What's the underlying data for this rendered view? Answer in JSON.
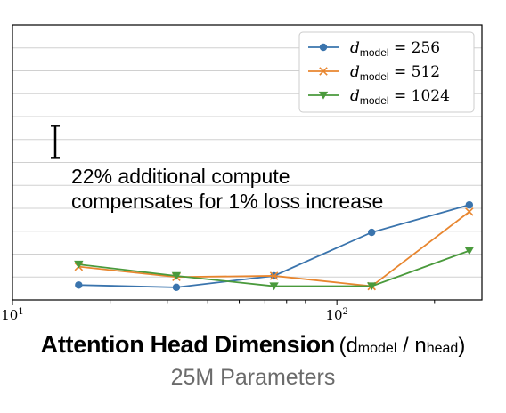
{
  "chart_data": {
    "type": "line",
    "x_scale": "log",
    "xlim": [
      10,
      280
    ],
    "ylim": [
      0,
      12
    ],
    "grid": "horizontal",
    "x_tick_labels": [
      {
        "base": "10",
        "exp": "1",
        "value": 10
      },
      {
        "base": "10",
        "exp": "2",
        "value": 100
      }
    ],
    "series": [
      {
        "name": "d_model = 256",
        "label_sym": "d",
        "label_sub": "model",
        "label_eq": "= 256",
        "color": "#3a74ad",
        "marker": "circle",
        "x": [
          16,
          32,
          64,
          128,
          256
        ],
        "y": [
          0.65,
          0.55,
          1.05,
          2.95,
          4.15
        ]
      },
      {
        "name": "d_model = 512",
        "label_sym": "d",
        "label_sub": "model",
        "label_eq": "= 512",
        "color": "#e8862f",
        "marker": "x",
        "x": [
          16,
          32,
          64,
          128,
          256
        ],
        "y": [
          1.45,
          1.0,
          1.05,
          0.6,
          3.85
        ]
      },
      {
        "name": "d_model = 1024",
        "label_sym": "d",
        "label_sub": "model",
        "label_eq": "= 1024",
        "color": "#4a9a3c",
        "marker": "triangle-down",
        "x": [
          16,
          32,
          64,
          128,
          256
        ],
        "y": [
          1.55,
          1.05,
          0.6,
          0.6,
          2.15
        ]
      }
    ],
    "legend_position": "top-right",
    "annotation": {
      "text_line1": "22% additional compute",
      "text_line2": "compensates for 1% loss increase",
      "bar_y": [
        6.2,
        7.6
      ]
    },
    "xlabel": {
      "main": "Attention Head Dimension",
      "paren_open": "(d",
      "sub1": "model",
      "mid": " / n",
      "sub2": "head",
      "paren_close": ")"
    },
    "subtitle": "25M Parameters"
  }
}
